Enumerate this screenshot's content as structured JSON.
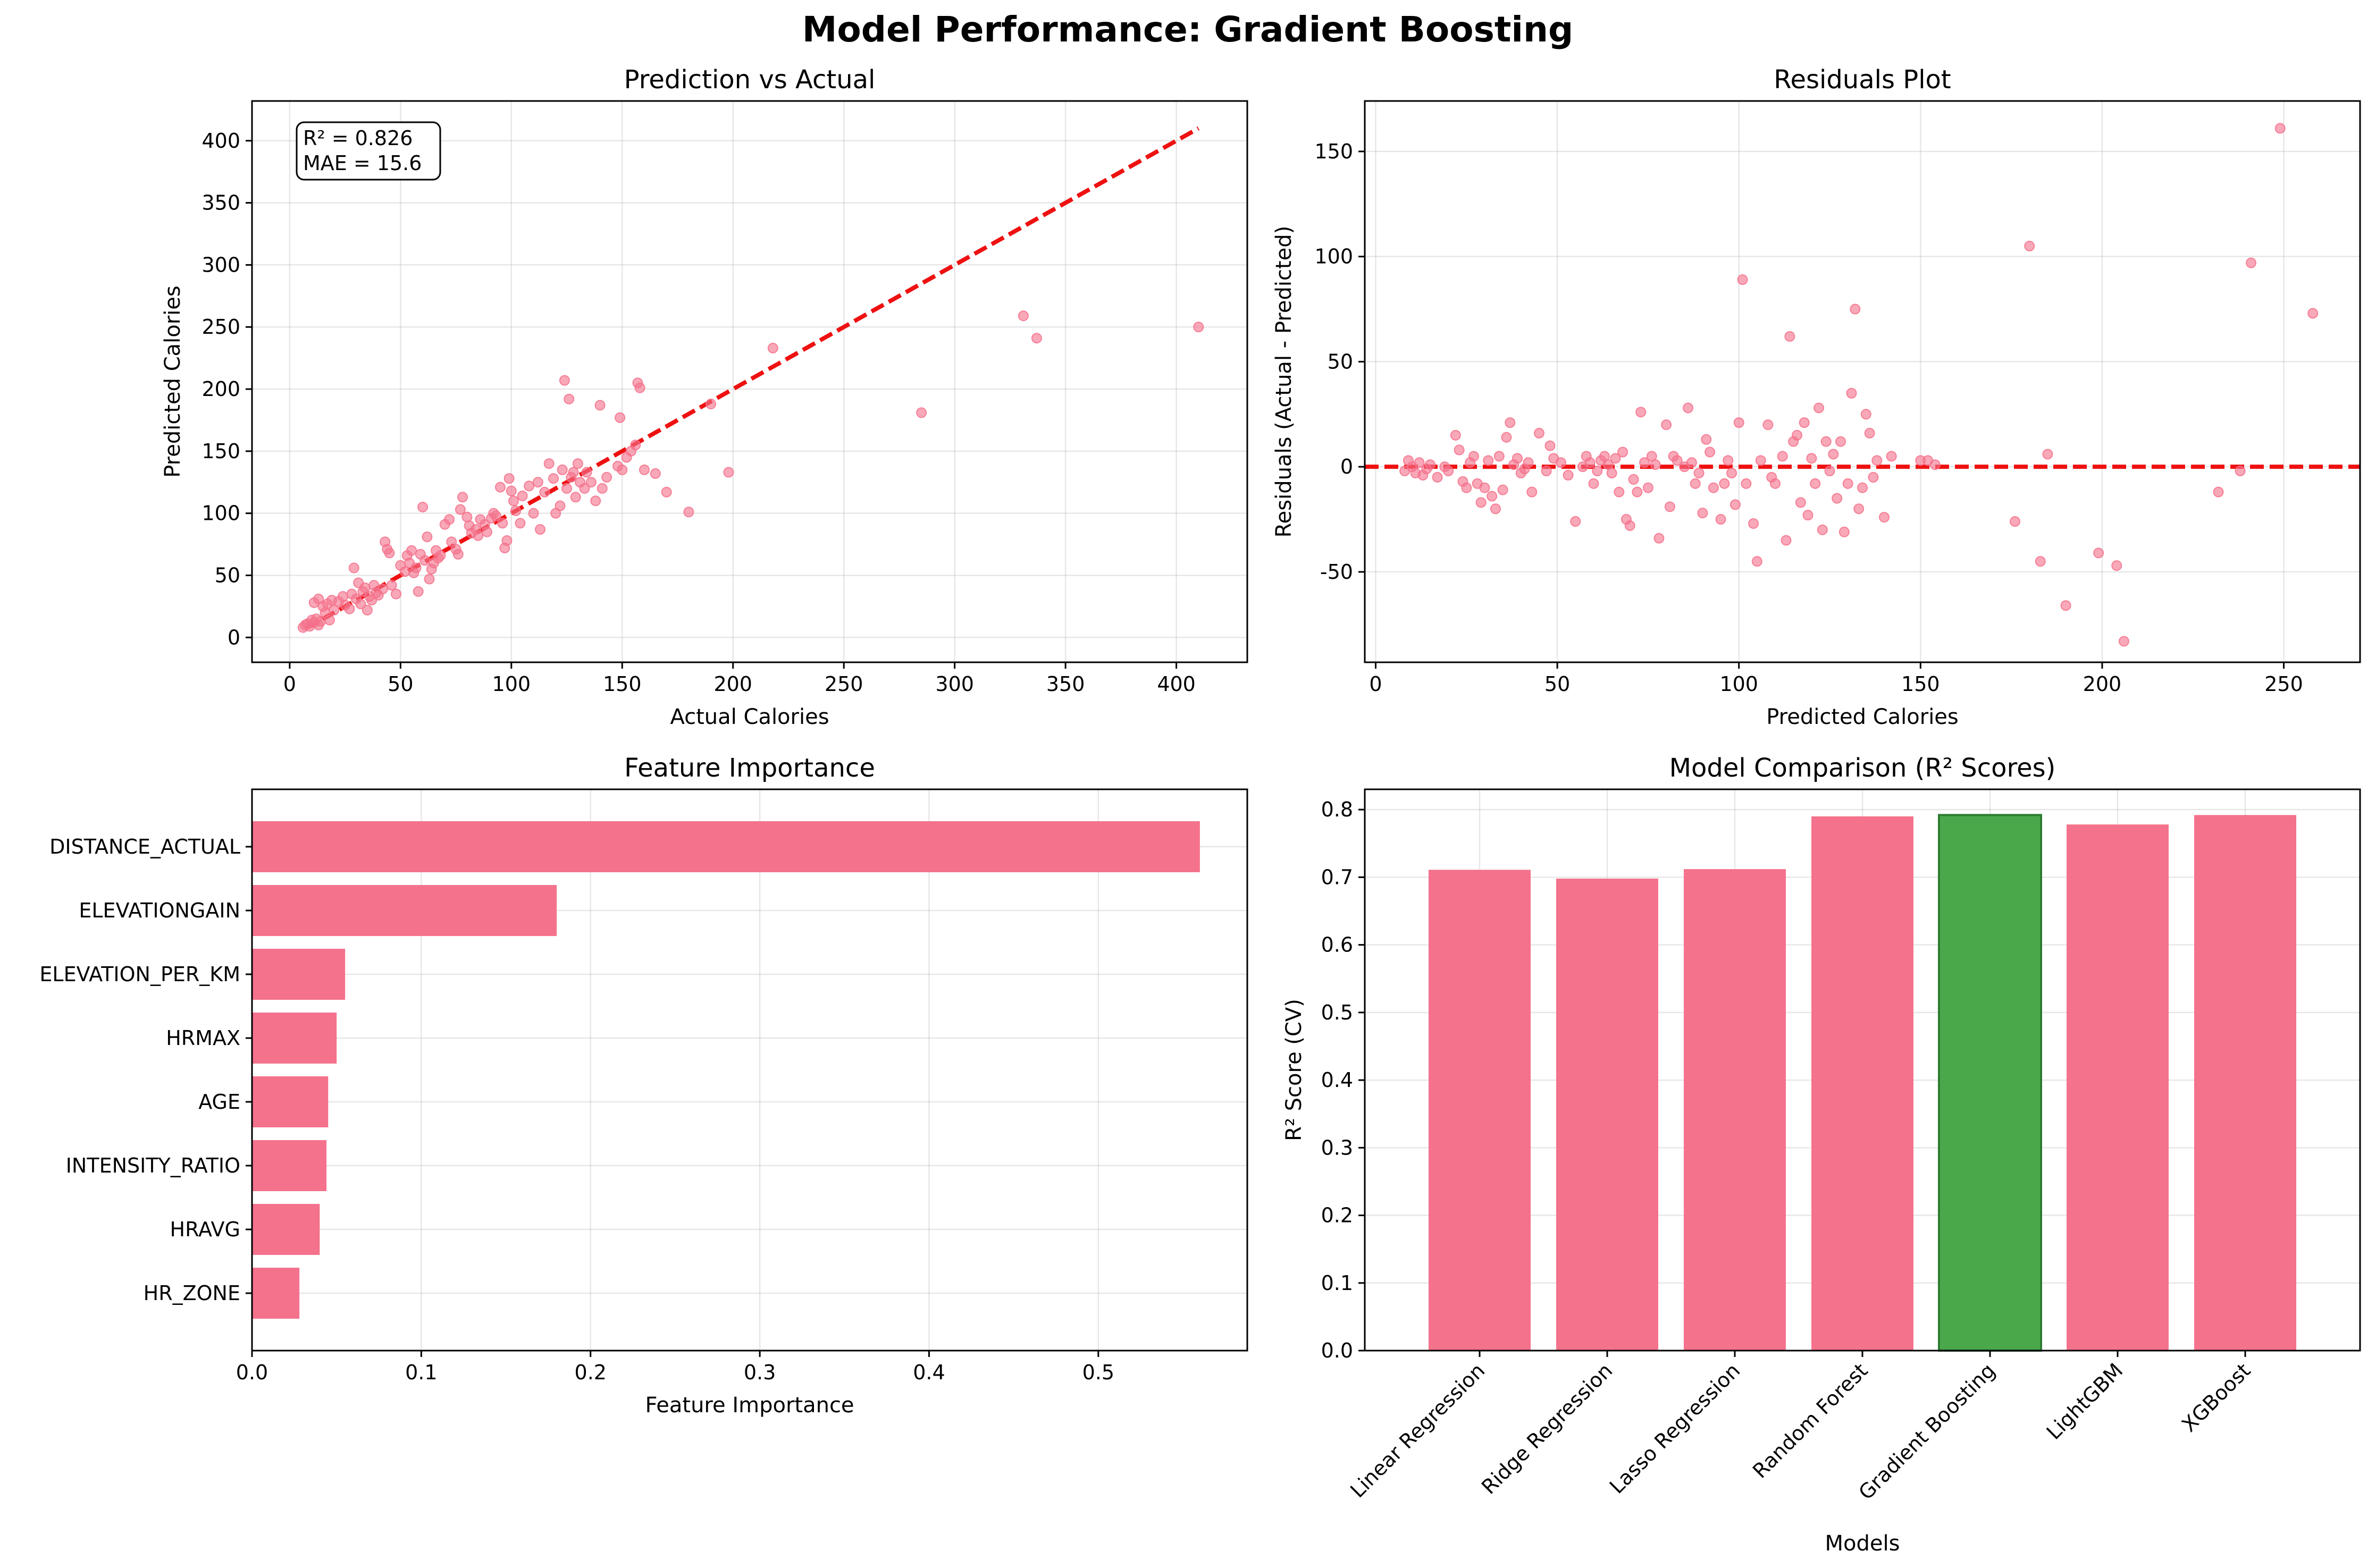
{
  "suptitle": "Model Performance: Gradient Boosting",
  "colors": {
    "primary": "#f4728c",
    "highlight": "#4aa84a",
    "highlight_edge": "#2e7d32",
    "reference_line": "#ee1111"
  },
  "chart_data": [
    {
      "id": "pred_vs_actual",
      "type": "scatter",
      "title": "Prediction vs Actual",
      "xlabel": "Actual Calories",
      "ylabel": "Predicted Calories",
      "xlim": [
        -17,
        432
      ],
      "ylim": [
        -20,
        432
      ],
      "xticks": [
        0,
        50,
        100,
        150,
        200,
        250,
        300,
        350,
        400
      ],
      "yticks": [
        0,
        50,
        100,
        150,
        200,
        250,
        300,
        350,
        400
      ],
      "grid": true,
      "annotation": [
        "R² = 0.826",
        "MAE = 15.6"
      ],
      "annotation_position": "top-left",
      "reference_line": {
        "x": [
          7,
          410
        ],
        "y": [
          7,
          410
        ],
        "style": "dashed"
      },
      "points": [
        [
          6,
          8
        ],
        [
          7,
          10
        ],
        [
          8,
          11
        ],
        [
          9,
          9
        ],
        [
          10,
          14
        ],
        [
          11,
          12
        ],
        [
          12,
          15
        ],
        [
          13,
          10
        ],
        [
          14,
          13
        ],
        [
          11,
          28
        ],
        [
          13,
          31
        ],
        [
          15,
          25
        ],
        [
          16,
          20
        ],
        [
          17,
          27
        ],
        [
          18,
          14
        ],
        [
          19,
          30
        ],
        [
          20,
          22
        ],
        [
          22,
          29
        ],
        [
          24,
          33
        ],
        [
          25,
          26
        ],
        [
          27,
          23
        ],
        [
          28,
          35
        ],
        [
          29,
          56
        ],
        [
          30,
          31
        ],
        [
          31,
          44
        ],
        [
          32,
          27
        ],
        [
          33,
          37
        ],
        [
          34,
          40
        ],
        [
          35,
          22
        ],
        [
          36,
          33
        ],
        [
          37,
          30
        ],
        [
          38,
          42
        ],
        [
          39,
          36
        ],
        [
          40,
          34
        ],
        [
          42,
          39
        ],
        [
          43,
          77
        ],
        [
          44,
          71
        ],
        [
          45,
          68
        ],
        [
          46,
          42
        ],
        [
          48,
          35
        ],
        [
          50,
          58
        ],
        [
          52,
          53
        ],
        [
          53,
          66
        ],
        [
          54,
          60
        ],
        [
          55,
          70
        ],
        [
          56,
          52
        ],
        [
          57,
          56
        ],
        [
          58,
          37
        ],
        [
          59,
          67
        ],
        [
          60,
          105
        ],
        [
          61,
          62
        ],
        [
          62,
          81
        ],
        [
          63,
          47
        ],
        [
          64,
          55
        ],
        [
          65,
          60
        ],
        [
          66,
          70
        ],
        [
          67,
          64
        ],
        [
          68,
          66
        ],
        [
          70,
          91
        ],
        [
          72,
          95
        ],
        [
          73,
          77
        ],
        [
          75,
          71
        ],
        [
          76,
          67
        ],
        [
          77,
          103
        ],
        [
          78,
          113
        ],
        [
          80,
          97
        ],
        [
          81,
          90
        ],
        [
          82,
          84
        ],
        [
          84,
          87
        ],
        [
          85,
          82
        ],
        [
          86,
          95
        ],
        [
          88,
          91
        ],
        [
          89,
          85
        ],
        [
          91,
          96
        ],
        [
          92,
          100
        ],
        [
          93,
          98
        ],
        [
          95,
          121
        ],
        [
          96,
          92
        ],
        [
          97,
          72
        ],
        [
          98,
          78
        ],
        [
          99,
          128
        ],
        [
          100,
          118
        ],
        [
          101,
          110
        ],
        [
          102,
          102
        ],
        [
          104,
          92
        ],
        [
          105,
          114
        ],
        [
          108,
          122
        ],
        [
          110,
          100
        ],
        [
          112,
          125
        ],
        [
          113,
          87
        ],
        [
          115,
          117
        ],
        [
          117,
          140
        ],
        [
          119,
          128
        ],
        [
          120,
          100
        ],
        [
          122,
          106
        ],
        [
          123,
          135
        ],
        [
          124,
          207
        ],
        [
          125,
          120
        ],
        [
          126,
          192
        ],
        [
          127,
          129
        ],
        [
          128,
          133
        ],
        [
          129,
          113
        ],
        [
          130,
          140
        ],
        [
          131,
          125
        ],
        [
          133,
          120
        ],
        [
          134,
          133
        ],
        [
          136,
          125
        ],
        [
          138,
          110
        ],
        [
          140,
          187
        ],
        [
          141,
          120
        ],
        [
          143,
          129
        ],
        [
          148,
          138
        ],
        [
          149,
          177
        ],
        [
          150,
          135
        ],
        [
          152,
          145
        ],
        [
          154,
          150
        ],
        [
          156,
          155
        ],
        [
          157,
          205
        ],
        [
          158,
          201
        ],
        [
          160,
          135
        ],
        [
          165,
          132
        ],
        [
          170,
          117
        ],
        [
          180,
          101
        ],
        [
          190,
          188
        ],
        [
          198,
          133
        ],
        [
          218,
          233
        ],
        [
          285,
          181
        ],
        [
          331,
          259
        ],
        [
          337,
          241
        ],
        [
          410,
          250
        ]
      ]
    },
    {
      "id": "residuals",
      "type": "scatter",
      "title": "Residuals Plot",
      "xlabel": "Predicted Calories",
      "ylabel": "Residuals (Actual - Predicted)",
      "xlim": [
        -3,
        271
      ],
      "ylim": [
        -93,
        174
      ],
      "xticks": [
        0,
        50,
        100,
        150,
        200,
        250
      ],
      "yticks": [
        -50,
        0,
        50,
        100,
        150
      ],
      "grid": true,
      "reference_line": {
        "y": 0,
        "style": "dashed"
      },
      "points": [
        [
          8,
          -2
        ],
        [
          9,
          3
        ],
        [
          10,
          0
        ],
        [
          11,
          -3
        ],
        [
          12,
          2
        ],
        [
          13,
          -4
        ],
        [
          14,
          -1
        ],
        [
          15,
          1
        ],
        [
          17,
          -5
        ],
        [
          19,
          0
        ],
        [
          20,
          -2
        ],
        [
          22,
          15
        ],
        [
          23,
          8
        ],
        [
          24,
          -7
        ],
        [
          25,
          -10
        ],
        [
          26,
          2
        ],
        [
          27,
          5
        ],
        [
          28,
          -8
        ],
        [
          29,
          -17
        ],
        [
          30,
          -10
        ],
        [
          31,
          3
        ],
        [
          32,
          -14
        ],
        [
          33,
          -20
        ],
        [
          34,
          5
        ],
        [
          35,
          -11
        ],
        [
          36,
          14
        ],
        [
          37,
          21
        ],
        [
          38,
          1
        ],
        [
          39,
          4
        ],
        [
          40,
          -3
        ],
        [
          41,
          -1
        ],
        [
          42,
          2
        ],
        [
          43,
          -12
        ],
        [
          45,
          16
        ],
        [
          47,
          -2
        ],
        [
          48,
          10
        ],
        [
          49,
          4
        ],
        [
          51,
          2
        ],
        [
          53,
          -4
        ],
        [
          55,
          -26
        ],
        [
          57,
          0
        ],
        [
          58,
          5
        ],
        [
          59,
          2
        ],
        [
          60,
          -8
        ],
        [
          61,
          -2
        ],
        [
          62,
          3
        ],
        [
          63,
          5
        ],
        [
          64,
          1
        ],
        [
          65,
          -3
        ],
        [
          66,
          4
        ],
        [
          67,
          -12
        ],
        [
          68,
          7
        ],
        [
          69,
          -25
        ],
        [
          70,
          -28
        ],
        [
          71,
          -6
        ],
        [
          72,
          -12
        ],
        [
          73,
          26
        ],
        [
          74,
          2
        ],
        [
          75,
          -10
        ],
        [
          76,
          5
        ],
        [
          77,
          1
        ],
        [
          78,
          -34
        ],
        [
          80,
          20
        ],
        [
          81,
          -19
        ],
        [
          82,
          5
        ],
        [
          83,
          3
        ],
        [
          85,
          0
        ],
        [
          86,
          28
        ],
        [
          87,
          2
        ],
        [
          88,
          -8
        ],
        [
          89,
          -3
        ],
        [
          90,
          -22
        ],
        [
          91,
          13
        ],
        [
          92,
          7
        ],
        [
          93,
          -10
        ],
        [
          95,
          -25
        ],
        [
          96,
          -8
        ],
        [
          97,
          3
        ],
        [
          98,
          -3
        ],
        [
          99,
          -18
        ],
        [
          100,
          21
        ],
        [
          101,
          89
        ],
        [
          102,
          -8
        ],
        [
          104,
          -27
        ],
        [
          105,
          -45
        ],
        [
          106,
          3
        ],
        [
          108,
          20
        ],
        [
          109,
          -5
        ],
        [
          110,
          -8
        ],
        [
          112,
          5
        ],
        [
          113,
          -35
        ],
        [
          114,
          62
        ],
        [
          115,
          12
        ],
        [
          116,
          15
        ],
        [
          117,
          -17
        ],
        [
          118,
          21
        ],
        [
          119,
          -23
        ],
        [
          120,
          4
        ],
        [
          121,
          -8
        ],
        [
          122,
          28
        ],
        [
          123,
          -30
        ],
        [
          124,
          12
        ],
        [
          125,
          -2
        ],
        [
          126,
          6
        ],
        [
          127,
          -15
        ],
        [
          128,
          12
        ],
        [
          129,
          -31
        ],
        [
          130,
          -8
        ],
        [
          131,
          35
        ],
        [
          132,
          75
        ],
        [
          133,
          -20
        ],
        [
          134,
          -10
        ],
        [
          135,
          25
        ],
        [
          136,
          16
        ],
        [
          137,
          -5
        ],
        [
          138,
          3
        ],
        [
          140,
          -24
        ],
        [
          142,
          5
        ],
        [
          150,
          3
        ],
        [
          152,
          3
        ],
        [
          154,
          1
        ],
        [
          176,
          -26
        ],
        [
          180,
          105
        ],
        [
          183,
          -45
        ],
        [
          185,
          6
        ],
        [
          190,
          -66
        ],
        [
          199,
          -41
        ],
        [
          204,
          -47
        ],
        [
          206,
          -83
        ],
        [
          232,
          -12
        ],
        [
          238,
          -2
        ],
        [
          241,
          97
        ],
        [
          249,
          161
        ],
        [
          258,
          73
        ]
      ]
    },
    {
      "id": "feature_importance",
      "type": "bar",
      "orientation": "horizontal",
      "title": "Feature Importance",
      "xlabel": "Feature Importance",
      "ylabel": "",
      "xlim": [
        0,
        0.588
      ],
      "xticks": [
        0.0,
        0.1,
        0.2,
        0.3,
        0.4,
        0.5
      ],
      "xtick_labels": [
        "0.0",
        "0.1",
        "0.2",
        "0.3",
        "0.4",
        "0.5"
      ],
      "grid": true,
      "categories": [
        "DISTANCE_ACTUAL",
        "ELEVATIONGAIN",
        "ELEVATION_PER_KM",
        "HRMAX",
        "AGE",
        "INTENSITY_RATIO",
        "HRAVG",
        "HR_ZONE"
      ],
      "values": [
        0.56,
        0.18,
        0.055,
        0.05,
        0.045,
        0.044,
        0.04,
        0.028
      ]
    },
    {
      "id": "model_comparison",
      "type": "bar",
      "title": "Model Comparison (R² Scores)",
      "xlabel": "Models",
      "ylabel": "R² Score (CV)",
      "ylim": [
        0,
        0.83
      ],
      "yticks": [
        0.0,
        0.1,
        0.2,
        0.3,
        0.4,
        0.5,
        0.6,
        0.7,
        0.8
      ],
      "ytick_labels": [
        "0.0",
        "0.1",
        "0.2",
        "0.3",
        "0.4",
        "0.5",
        "0.6",
        "0.7",
        "0.8"
      ],
      "grid": true,
      "categories": [
        "Linear Regression",
        "Ridge Regression",
        "Lasso Regression",
        "Random Forest",
        "Gradient Boosting",
        "LightGBM",
        "XGBoost"
      ],
      "values": [
        0.711,
        0.698,
        0.712,
        0.79,
        0.792,
        0.778,
        0.792
      ],
      "highlight": "Gradient Boosting"
    }
  ]
}
